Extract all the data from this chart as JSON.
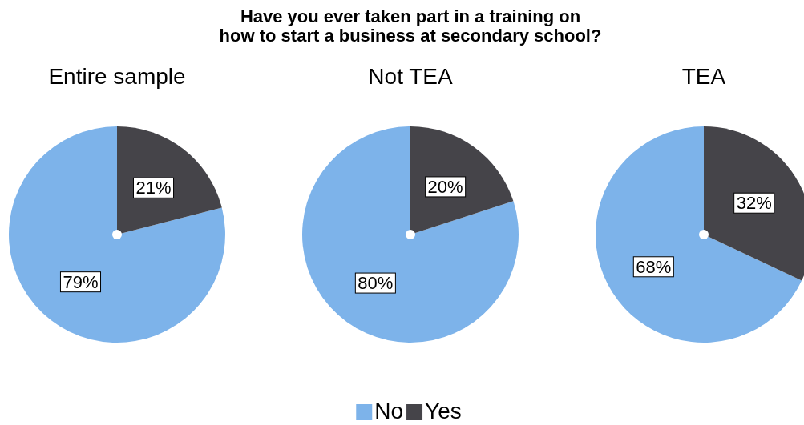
{
  "chart_data": [
    {
      "type": "pie",
      "subtitle": "Entire sample",
      "categories": [
        null,
        null
      ],
      "values": [
        79,
        21
      ],
      "colors": [
        "#7db3ea",
        "#454449"
      ],
      "value_labels": [
        "79%",
        "21%"
      ],
      "legend": false
    },
    {
      "type": "pie",
      "title": "Have you ever taken part in a training on\nhow to start a business at secondary school?",
      "subtitle": "Not TEA",
      "categories": [
        "No",
        "Yes"
      ],
      "values": [
        80,
        20
      ],
      "colors": [
        "#7db3ea",
        "#454449"
      ],
      "value_labels": [
        "80%",
        "20%"
      ],
      "legend": "bottom"
    },
    {
      "type": "pie",
      "subtitle": "TEA",
      "categories": [
        null,
        null
      ],
      "values": [
        68,
        32
      ],
      "colors": [
        "#7db3ea",
        "#454449"
      ],
      "value_labels": [
        "68%",
        "32%"
      ],
      "legend": false
    }
  ]
}
